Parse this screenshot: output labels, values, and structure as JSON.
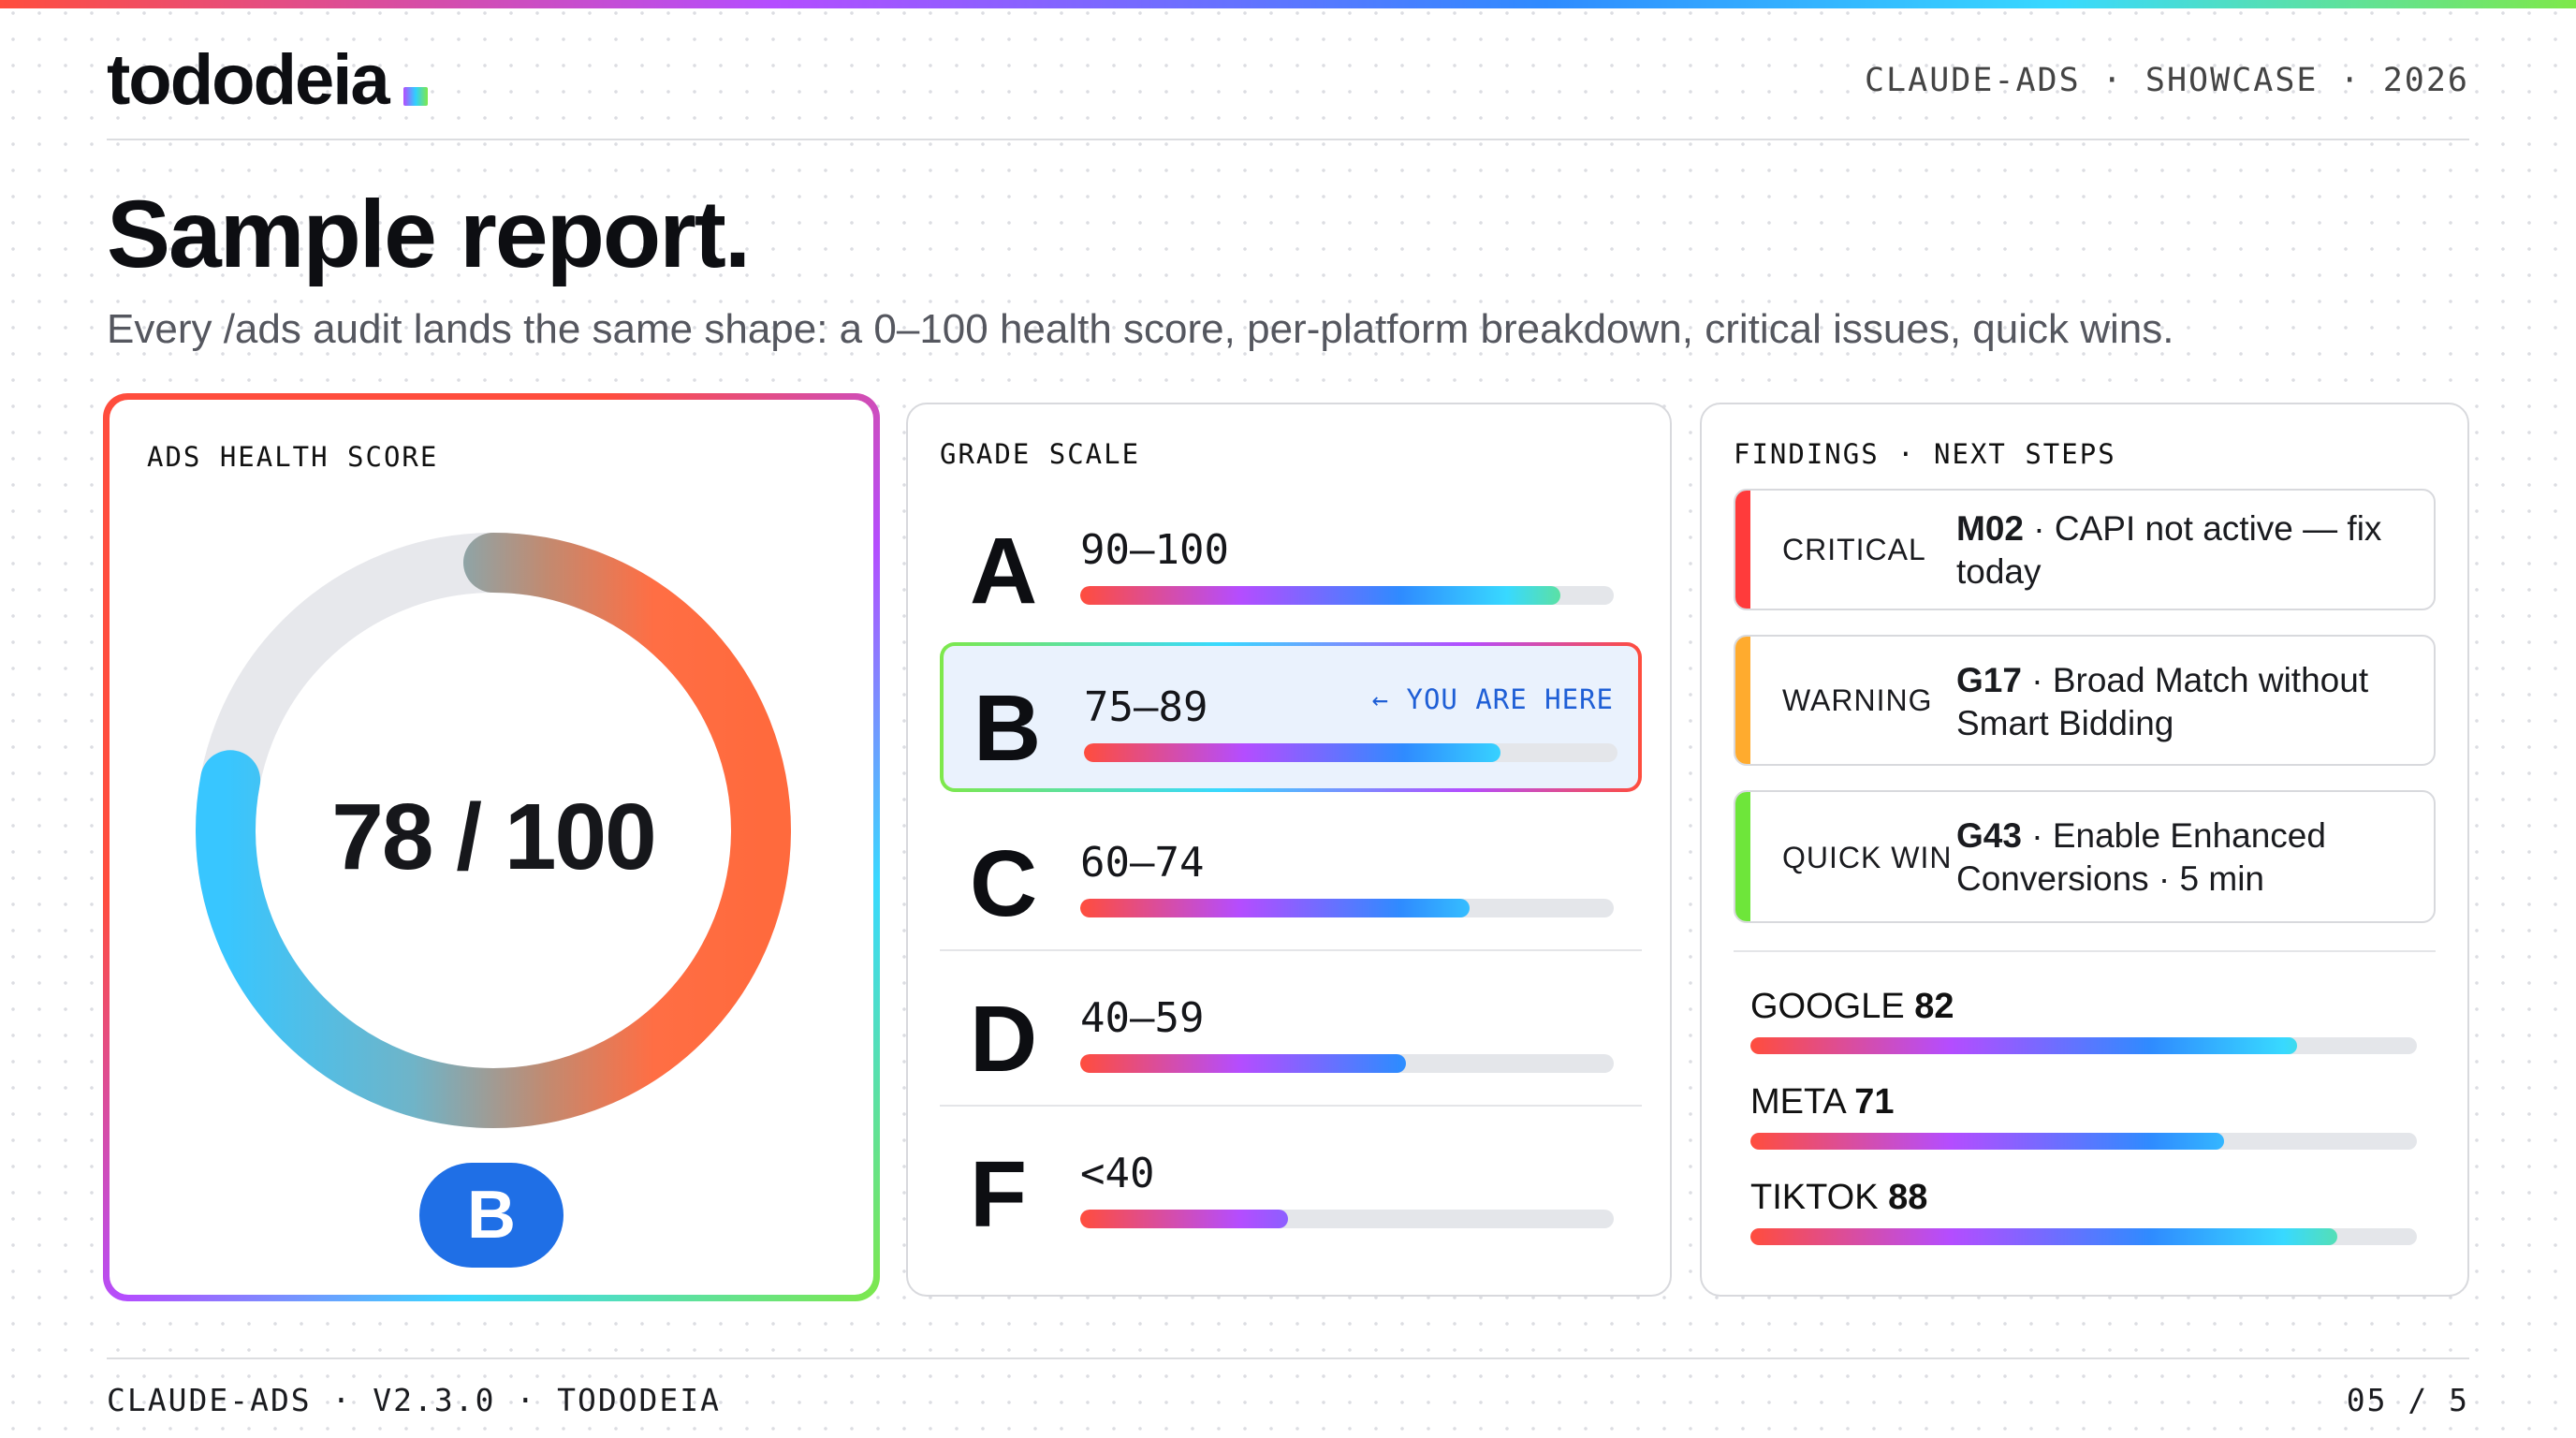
{
  "header": {
    "logo": "tododeia",
    "meta": "CLAUDE-ADS · SHOWCASE · 2026"
  },
  "title": "Sample report.",
  "subtitle": "Every /ads audit lands the same shape: a 0–100 health score, per-platform breakdown, critical issues, quick wins.",
  "health": {
    "label": "ADS HEALTH SCORE",
    "score_text": "78 / 100",
    "score": 78,
    "max": 100,
    "grade": "B"
  },
  "grade_scale": {
    "label": "GRADE SCALE",
    "you_are_here": "← YOU ARE HERE",
    "rows": [
      {
        "letter": "A",
        "range": "90–100",
        "fill": 0.9,
        "active": false
      },
      {
        "letter": "B",
        "range": "75–89",
        "fill": 0.78,
        "active": true
      },
      {
        "letter": "C",
        "range": "60–74",
        "fill": 0.73,
        "active": false
      },
      {
        "letter": "D",
        "range": "40–59",
        "fill": 0.61,
        "active": false
      },
      {
        "letter": "F",
        "range": "<40",
        "fill": 0.39,
        "active": false
      }
    ]
  },
  "findings": {
    "label": "FINDINGS · NEXT STEPS",
    "items": [
      {
        "kind": "CRITICAL",
        "code": "M02",
        "text": " · CAPI not active — fix today",
        "color": "#ff3b3b"
      },
      {
        "kind": "WARNING",
        "code": "G17",
        "text": " · Broad Match without Smart Bidding",
        "color": "#ffab2e"
      },
      {
        "kind": "QUICK WIN",
        "code": "G43",
        "text": " · Enable Enhanced Conversions · 5 min",
        "color": "#6ee63a"
      }
    ],
    "platforms": [
      {
        "name": "GOOGLE ",
        "score": "82",
        "value": 82
      },
      {
        "name": "META ",
        "score": "71",
        "value": 71
      },
      {
        "name": "TIKTOK ",
        "score": "88",
        "value": 88
      }
    ]
  },
  "footer": {
    "left": "CLAUDE-ADS · V2.3.0 · TODODEIA",
    "right": "05 / 5"
  }
}
